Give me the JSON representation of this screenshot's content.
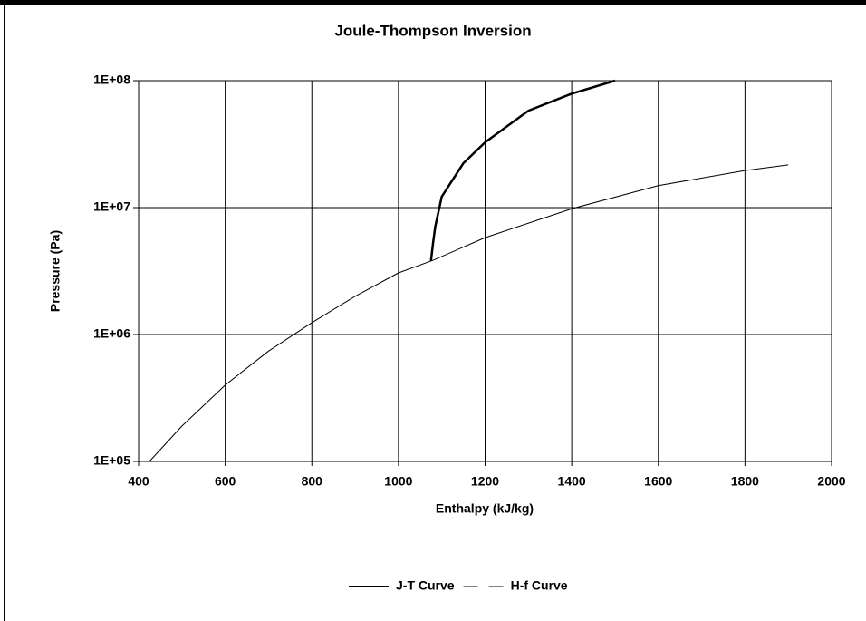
{
  "chart_data": {
    "type": "line",
    "title": "Joule-Thompson Inversion",
    "x_label": "Enthalpy (kJ/kg)",
    "y_label": "Pressure (Pa)",
    "xlim": [
      400,
      2000
    ],
    "xticks": [
      400,
      600,
      800,
      1000,
      1200,
      1400,
      1600,
      1800,
      2000
    ],
    "ylim": [
      100000,
      100000000
    ],
    "yticks": [
      {
        "value": 100000,
        "label": "1E+05"
      },
      {
        "value": 1000000,
        "label": "1E+06"
      },
      {
        "value": 10000000,
        "label": "1E+07"
      },
      {
        "value": 100000000,
        "label": "1E+08"
      }
    ],
    "log_y": true,
    "grid": true,
    "legend": "bottom",
    "series": [
      {
        "name": "J-T Curve",
        "color": "#000000",
        "line_width": 2.5,
        "legend_style": "solid",
        "x": [
          1075,
          1080,
          1085,
          1100,
          1150,
          1200,
          1300,
          1400,
          1500
        ],
        "values": [
          3800000,
          5300000,
          7100000,
          12200000,
          22400000,
          32700000,
          58000000,
          79000000,
          100000000
        ]
      },
      {
        "name": "H-f Curve",
        "color": "#000000",
        "line_width": 1,
        "legend_style": "dashed",
        "x": [
          425,
          500,
          600,
          700,
          800,
          900,
          1000,
          1080,
          1200,
          1400,
          1600,
          1800,
          1900
        ],
        "values": [
          100000,
          190000,
          400000,
          740000,
          1240000,
          2000000,
          3060000,
          3850000,
          5800000,
          9800000,
          14900000,
          19600000,
          21700000
        ]
      }
    ]
  }
}
